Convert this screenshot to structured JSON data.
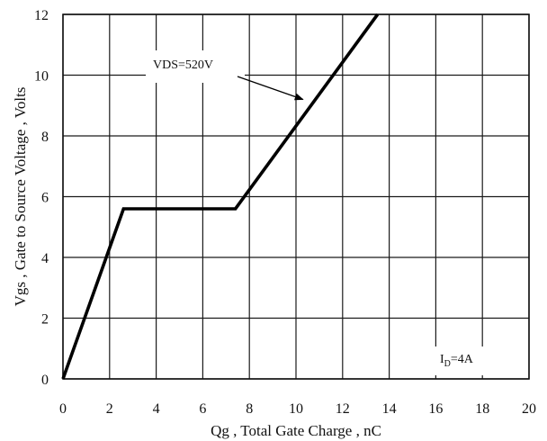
{
  "chart_data": {
    "type": "line",
    "title": "",
    "xlabel": "Qg , Total Gate Charge , nC",
    "ylabel": "Vgs , Gate to Source Voltage , Volts",
    "xlim": [
      0,
      20
    ],
    "ylim": [
      0,
      12
    ],
    "xticks": [
      0,
      2,
      4,
      6,
      8,
      10,
      12,
      14,
      16,
      18,
      20
    ],
    "yticks": [
      0,
      2,
      4,
      6,
      8,
      10,
      12
    ],
    "grid": true,
    "series": [
      {
        "x": [
          0,
          2.6,
          7.4,
          13.5
        ],
        "y": [
          0,
          5.6,
          5.6,
          12
        ]
      }
    ],
    "annotations": {
      "vds": {
        "text": "VDS=520V",
        "arrow_to": [
          10.3,
          9.2
        ]
      },
      "id": {
        "main": "I",
        "sub": "D",
        "rest": "=4A"
      }
    }
  }
}
